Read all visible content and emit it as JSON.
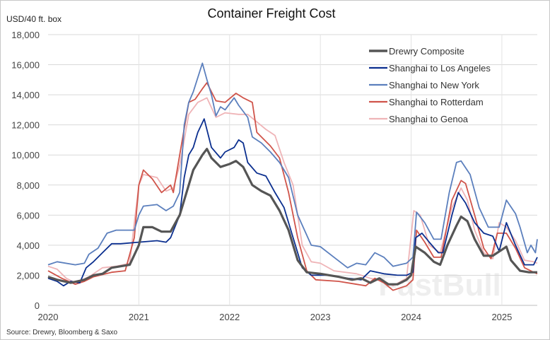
{
  "chart_data": {
    "type": "line",
    "title": "Container Freight Cost",
    "ylabel": "USD/40 ft. box",
    "xlabel": "",
    "ylim": [
      0,
      18000
    ],
    "xlim": [
      2020,
      2025.39
    ],
    "yticks": [
      0,
      2000,
      4000,
      6000,
      8000,
      10000,
      12000,
      14000,
      16000,
      18000
    ],
    "ytick_labels": [
      "0",
      "2,000",
      "4,000",
      "6,000",
      "8,000",
      "10,000",
      "12,000",
      "14,000",
      "16,000",
      "18,000"
    ],
    "xticks": [
      2020,
      2021,
      2022,
      2023,
      2024,
      2025
    ],
    "xtick_labels": [
      "2020",
      "2021",
      "2022",
      "2023",
      "2024",
      "2025"
    ],
    "grid": true,
    "legend_position": "top-right",
    "source": "Source: Drewry, Bloomberg & Saxo",
    "watermark": "FastBull",
    "series": [
      {
        "name": "Drewry Composite",
        "color": "#555555",
        "width": 3.2,
        "points": [
          [
            2020,
            1900
          ],
          [
            2020.1,
            1700
          ],
          [
            2020.25,
            1500
          ],
          [
            2020.4,
            1700
          ],
          [
            2020.5,
            2000
          ],
          [
            2020.6,
            2100
          ],
          [
            2020.7,
            2500
          ],
          [
            2020.8,
            2600
          ],
          [
            2020.9,
            2700
          ],
          [
            2021.0,
            4000
          ],
          [
            2021.05,
            5200
          ],
          [
            2021.15,
            5200
          ],
          [
            2021.25,
            4900
          ],
          [
            2021.35,
            4900
          ],
          [
            2021.45,
            6000
          ],
          [
            2021.5,
            7000
          ],
          [
            2021.6,
            9000
          ],
          [
            2021.7,
            10000
          ],
          [
            2021.75,
            10400
          ],
          [
            2021.8,
            9800
          ],
          [
            2021.9,
            9200
          ],
          [
            2022.0,
            9400
          ],
          [
            2022.07,
            9600
          ],
          [
            2022.15,
            9200
          ],
          [
            2022.25,
            8000
          ],
          [
            2022.35,
            7600
          ],
          [
            2022.45,
            7300
          ],
          [
            2022.55,
            6300
          ],
          [
            2022.65,
            5000
          ],
          [
            2022.75,
            3000
          ],
          [
            2022.85,
            2200
          ],
          [
            2023.0,
            2100
          ],
          [
            2023.2,
            1900
          ],
          [
            2023.35,
            1700
          ],
          [
            2023.45,
            1800
          ],
          [
            2023.55,
            1500
          ],
          [
            2023.65,
            1800
          ],
          [
            2023.75,
            1400
          ],
          [
            2023.85,
            1400
          ],
          [
            2023.95,
            1700
          ],
          [
            2024.0,
            2000
          ],
          [
            2024.05,
            3900
          ],
          [
            2024.15,
            3500
          ],
          [
            2024.25,
            2900
          ],
          [
            2024.32,
            2700
          ],
          [
            2024.4,
            4000
          ],
          [
            2024.5,
            5300
          ],
          [
            2024.55,
            5900
          ],
          [
            2024.62,
            5600
          ],
          [
            2024.7,
            4400
          ],
          [
            2024.8,
            3300
          ],
          [
            2024.9,
            3300
          ],
          [
            2024.95,
            3500
          ],
          [
            2025.0,
            3700
          ],
          [
            2025.05,
            3900
          ],
          [
            2025.1,
            3000
          ],
          [
            2025.2,
            2300
          ],
          [
            2025.3,
            2200
          ],
          [
            2025.39,
            2200
          ]
        ]
      },
      {
        "name": "Shanghai to Los Angeles",
        "color": "#0b2f8f",
        "width": 1.8,
        "points": [
          [
            2020,
            1800
          ],
          [
            2020.1,
            1600
          ],
          [
            2020.17,
            1300
          ],
          [
            2020.25,
            1600
          ],
          [
            2020.35,
            1500
          ],
          [
            2020.42,
            2500
          ],
          [
            2020.5,
            2900
          ],
          [
            2020.6,
            3500
          ],
          [
            2020.7,
            4100
          ],
          [
            2020.8,
            4100
          ],
          [
            2021.0,
            4200
          ],
          [
            2021.2,
            4300
          ],
          [
            2021.3,
            4200
          ],
          [
            2021.35,
            4500
          ],
          [
            2021.45,
            6000
          ],
          [
            2021.5,
            8500
          ],
          [
            2021.55,
            10000
          ],
          [
            2021.6,
            10500
          ],
          [
            2021.65,
            11500
          ],
          [
            2021.72,
            12400
          ],
          [
            2021.8,
            10500
          ],
          [
            2021.9,
            9800
          ],
          [
            2021.95,
            10200
          ],
          [
            2022.05,
            10500
          ],
          [
            2022.1,
            11000
          ],
          [
            2022.15,
            10800
          ],
          [
            2022.2,
            9500
          ],
          [
            2022.3,
            8800
          ],
          [
            2022.4,
            8600
          ],
          [
            2022.5,
            7500
          ],
          [
            2022.6,
            6500
          ],
          [
            2022.7,
            4500
          ],
          [
            2022.8,
            2500
          ],
          [
            2022.9,
            2000
          ],
          [
            2023.1,
            2000
          ],
          [
            2023.3,
            1800
          ],
          [
            2023.45,
            1700
          ],
          [
            2023.55,
            2300
          ],
          [
            2023.7,
            2100
          ],
          [
            2023.85,
            2000
          ],
          [
            2023.95,
            2000
          ],
          [
            2024.02,
            2200
          ],
          [
            2024.05,
            4500
          ],
          [
            2024.12,
            4800
          ],
          [
            2024.2,
            4200
          ],
          [
            2024.3,
            3500
          ],
          [
            2024.35,
            3500
          ],
          [
            2024.45,
            6000
          ],
          [
            2024.52,
            7500
          ],
          [
            2024.6,
            6800
          ],
          [
            2024.7,
            5500
          ],
          [
            2024.8,
            4800
          ],
          [
            2024.9,
            4600
          ],
          [
            2024.97,
            3600
          ],
          [
            2025.05,
            5500
          ],
          [
            2025.15,
            4000
          ],
          [
            2025.25,
            2700
          ],
          [
            2025.35,
            2700
          ],
          [
            2025.39,
            3200
          ]
        ]
      },
      {
        "name": "Shanghai to New York",
        "color": "#5b7fbd",
        "width": 1.8,
        "points": [
          [
            2020,
            2700
          ],
          [
            2020.1,
            2900
          ],
          [
            2020.3,
            2700
          ],
          [
            2020.4,
            2800
          ],
          [
            2020.45,
            3400
          ],
          [
            2020.55,
            3800
          ],
          [
            2020.65,
            4800
          ],
          [
            2020.75,
            5000
          ],
          [
            2020.95,
            5000
          ],
          [
            2021.0,
            6000
          ],
          [
            2021.05,
            6600
          ],
          [
            2021.2,
            6700
          ],
          [
            2021.3,
            6300
          ],
          [
            2021.38,
            6600
          ],
          [
            2021.45,
            7500
          ],
          [
            2021.5,
            12000
          ],
          [
            2021.55,
            13500
          ],
          [
            2021.6,
            14200
          ],
          [
            2021.7,
            16100
          ],
          [
            2021.75,
            15000
          ],
          [
            2021.8,
            14000
          ],
          [
            2021.85,
            12600
          ],
          [
            2021.9,
            13200
          ],
          [
            2021.95,
            13000
          ],
          [
            2022.05,
            13800
          ],
          [
            2022.1,
            13300
          ],
          [
            2022.2,
            12500
          ],
          [
            2022.25,
            11200
          ],
          [
            2022.35,
            10800
          ],
          [
            2022.45,
            10200
          ],
          [
            2022.55,
            9500
          ],
          [
            2022.65,
            8500
          ],
          [
            2022.75,
            6000
          ],
          [
            2022.9,
            4000
          ],
          [
            2023.0,
            3900
          ],
          [
            2023.15,
            3200
          ],
          [
            2023.3,
            2500
          ],
          [
            2023.4,
            2800
          ],
          [
            2023.5,
            2700
          ],
          [
            2023.6,
            3500
          ],
          [
            2023.7,
            3200
          ],
          [
            2023.8,
            2600
          ],
          [
            2023.95,
            2800
          ],
          [
            2024.02,
            3200
          ],
          [
            2024.06,
            6200
          ],
          [
            2024.15,
            5500
          ],
          [
            2024.25,
            4400
          ],
          [
            2024.33,
            4400
          ],
          [
            2024.42,
            7500
          ],
          [
            2024.5,
            9500
          ],
          [
            2024.55,
            9600
          ],
          [
            2024.65,
            8700
          ],
          [
            2024.75,
            6500
          ],
          [
            2024.85,
            5200
          ],
          [
            2024.97,
            5200
          ],
          [
            2025.05,
            7000
          ],
          [
            2025.15,
            6100
          ],
          [
            2025.2,
            5200
          ],
          [
            2025.28,
            3500
          ],
          [
            2025.32,
            4000
          ],
          [
            2025.37,
            3500
          ],
          [
            2025.39,
            4400
          ]
        ]
      },
      {
        "name": "Shanghai to Rotterdam",
        "color": "#d0544a",
        "width": 1.8,
        "points": [
          [
            2020,
            2300
          ],
          [
            2020.15,
            1800
          ],
          [
            2020.3,
            1400
          ],
          [
            2020.4,
            1600
          ],
          [
            2020.5,
            1900
          ],
          [
            2020.7,
            2200
          ],
          [
            2020.85,
            2300
          ],
          [
            2020.95,
            4500
          ],
          [
            2021.0,
            8000
          ],
          [
            2021.05,
            9000
          ],
          [
            2021.15,
            8400
          ],
          [
            2021.25,
            7500
          ],
          [
            2021.35,
            8000
          ],
          [
            2021.38,
            7500
          ],
          [
            2021.45,
            10000
          ],
          [
            2021.55,
            13500
          ],
          [
            2021.62,
            13700
          ],
          [
            2021.7,
            14400
          ],
          [
            2021.75,
            14800
          ],
          [
            2021.85,
            13600
          ],
          [
            2021.95,
            13500
          ],
          [
            2022.07,
            14100
          ],
          [
            2022.15,
            13800
          ],
          [
            2022.25,
            13500
          ],
          [
            2022.3,
            11500
          ],
          [
            2022.45,
            10600
          ],
          [
            2022.55,
            9800
          ],
          [
            2022.65,
            7500
          ],
          [
            2022.75,
            4500
          ],
          [
            2022.85,
            2300
          ],
          [
            2022.95,
            1700
          ],
          [
            2023.2,
            1600
          ],
          [
            2023.4,
            1400
          ],
          [
            2023.5,
            1300
          ],
          [
            2023.6,
            1800
          ],
          [
            2023.7,
            1500
          ],
          [
            2023.8,
            1000
          ],
          [
            2023.95,
            1300
          ],
          [
            2024.02,
            1700
          ],
          [
            2024.06,
            5000
          ],
          [
            2024.15,
            4200
          ],
          [
            2024.25,
            3200
          ],
          [
            2024.33,
            3200
          ],
          [
            2024.45,
            7000
          ],
          [
            2024.55,
            8300
          ],
          [
            2024.6,
            8100
          ],
          [
            2024.7,
            6000
          ],
          [
            2024.8,
            3800
          ],
          [
            2024.88,
            3100
          ],
          [
            2024.95,
            4800
          ],
          [
            2025.05,
            4800
          ],
          [
            2025.15,
            3800
          ],
          [
            2025.25,
            2500
          ],
          [
            2025.35,
            2200
          ],
          [
            2025.39,
            2100
          ]
        ]
      },
      {
        "name": "Shanghai to Genoa",
        "color": "#efb4b7",
        "width": 1.8,
        "points": [
          [
            2020,
            2600
          ],
          [
            2020.1,
            2400
          ],
          [
            2020.2,
            1800
          ],
          [
            2020.3,
            1500
          ],
          [
            2020.45,
            1900
          ],
          [
            2020.6,
            2500
          ],
          [
            2020.75,
            2600
          ],
          [
            2020.9,
            2800
          ],
          [
            2020.95,
            5500
          ],
          [
            2021.0,
            8000
          ],
          [
            2021.05,
            8700
          ],
          [
            2021.2,
            8500
          ],
          [
            2021.3,
            7600
          ],
          [
            2021.38,
            7800
          ],
          [
            2021.45,
            9300
          ],
          [
            2021.55,
            12700
          ],
          [
            2021.65,
            13500
          ],
          [
            2021.75,
            13800
          ],
          [
            2021.85,
            12500
          ],
          [
            2021.95,
            12800
          ],
          [
            2022.1,
            12700
          ],
          [
            2022.2,
            12700
          ],
          [
            2022.3,
            12200
          ],
          [
            2022.4,
            11700
          ],
          [
            2022.5,
            11300
          ],
          [
            2022.6,
            9500
          ],
          [
            2022.7,
            8000
          ],
          [
            2022.8,
            4000
          ],
          [
            2022.9,
            2900
          ],
          [
            2023.0,
            2800
          ],
          [
            2023.15,
            2300
          ],
          [
            2023.4,
            2100
          ],
          [
            2023.55,
            1800
          ],
          [
            2023.7,
            1600
          ],
          [
            2023.8,
            1300
          ],
          [
            2023.95,
            1800
          ],
          [
            2024.03,
            6300
          ],
          [
            2024.1,
            6000
          ],
          [
            2024.2,
            4000
          ],
          [
            2024.32,
            3500
          ],
          [
            2024.45,
            6500
          ],
          [
            2024.55,
            7800
          ],
          [
            2024.62,
            7000
          ],
          [
            2024.7,
            5000
          ],
          [
            2024.8,
            3500
          ],
          [
            2024.9,
            3100
          ],
          [
            2024.97,
            5500
          ],
          [
            2025.05,
            5200
          ],
          [
            2025.15,
            4300
          ],
          [
            2025.25,
            3000
          ],
          [
            2025.35,
            2900
          ],
          [
            2025.39,
            2800
          ]
        ]
      }
    ]
  }
}
